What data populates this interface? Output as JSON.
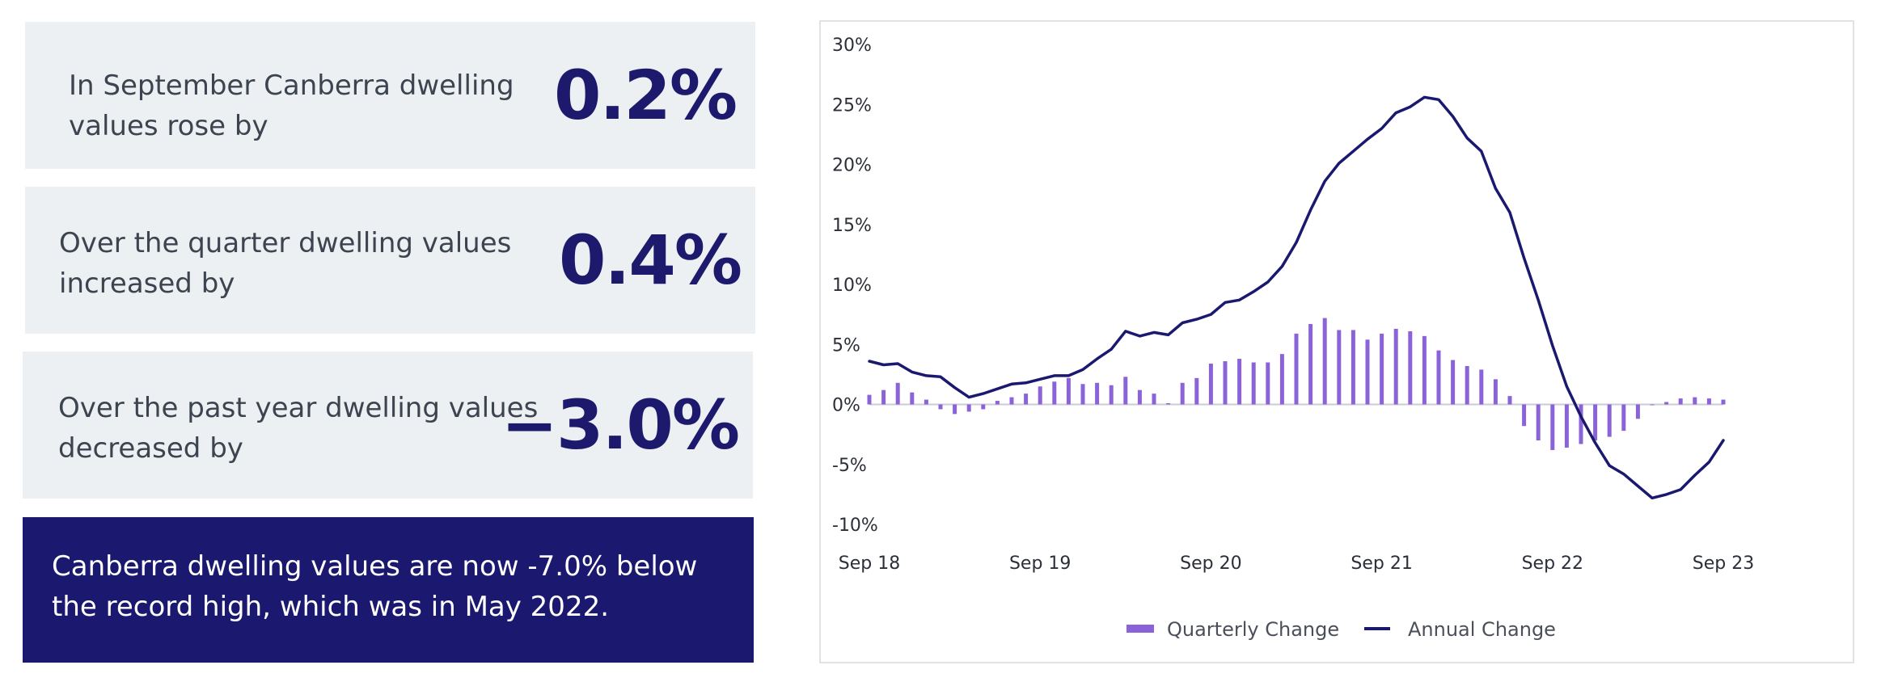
{
  "cards": [
    {
      "label": "In September Canberra dwelling\nvalues rose by",
      "value": "0.2%"
    },
    {
      "label": "Over the quarter dwelling values\nincreased by",
      "value": "0.4%"
    },
    {
      "label": "Over the past year dwelling values\ndecreased by",
      "value": "−3.0%"
    }
  ],
  "note": "Canberra dwelling values are now -7.0% below the record high, which was in May 2022.",
  "colors": {
    "card_bg": "#ecf0f3",
    "value_text": "#1d1a6d",
    "note_bg": "#1b1870",
    "quarterly_bar": "#8b63d9",
    "annual_line": "#1b1870"
  },
  "chart_data": {
    "type": "bar",
    "title": "",
    "xlabel": "",
    "ylabel": "",
    "ylim": [
      -10,
      30
    ],
    "y_ticks": [
      "30%",
      "25%",
      "20%",
      "15%",
      "10%",
      "5%",
      "0%",
      "-5%",
      "-10%"
    ],
    "y_tick_values": [
      30,
      25,
      20,
      15,
      10,
      5,
      0,
      -5,
      -10
    ],
    "x_ticks": [
      "Sep 18",
      "Sep 19",
      "Sep 20",
      "Sep 21",
      "Sep 22",
      "Sep 23"
    ],
    "x_tick_months": [
      0,
      12,
      24,
      36,
      48,
      60
    ],
    "grid": false,
    "legend_position": "bottom-center",
    "series": [
      {
        "name": "Quarterly Change",
        "type": "bar",
        "values": [
          0.8,
          1.2,
          1.8,
          1.0,
          0.4,
          -0.4,
          -0.8,
          -0.6,
          -0.4,
          0.3,
          0.6,
          0.9,
          1.5,
          1.9,
          2.2,
          1.7,
          1.8,
          1.6,
          2.3,
          1.2,
          0.9,
          0.1,
          1.8,
          2.2,
          3.4,
          3.6,
          3.8,
          3.5,
          3.5,
          4.2,
          5.9,
          6.7,
          7.2,
          6.2,
          6.2,
          5.4,
          5.9,
          6.3,
          6.1,
          5.7,
          4.5,
          3.7,
          3.2,
          2.9,
          2.1,
          0.7,
          -1.8,
          -3.0,
          -3.8,
          -3.6,
          -3.3,
          -3.0,
          -2.7,
          -2.2,
          -1.2,
          0.0,
          0.2,
          0.5,
          0.6,
          0.5,
          0.4
        ]
      },
      {
        "name": "Annual Change",
        "type": "line",
        "values": [
          3.6,
          3.3,
          3.4,
          2.7,
          2.4,
          2.3,
          1.4,
          0.6,
          0.9,
          1.3,
          1.7,
          1.8,
          2.1,
          2.4,
          2.4,
          2.9,
          3.8,
          4.6,
          6.1,
          5.7,
          6.0,
          5.8,
          6.8,
          7.1,
          7.5,
          8.5,
          8.7,
          9.4,
          10.2,
          11.5,
          13.5,
          16.2,
          18.6,
          20.1,
          21.1,
          22.1,
          23.0,
          24.3,
          24.8,
          25.6,
          25.4,
          24.0,
          22.2,
          21.1,
          18.0,
          16.0,
          12.2,
          8.7,
          4.9,
          1.5,
          -1.0,
          -3.2,
          -5.1,
          -5.8,
          -6.8,
          -7.8,
          -7.5,
          -7.1,
          -5.9,
          -4.8,
          -3.0
        ]
      }
    ]
  }
}
